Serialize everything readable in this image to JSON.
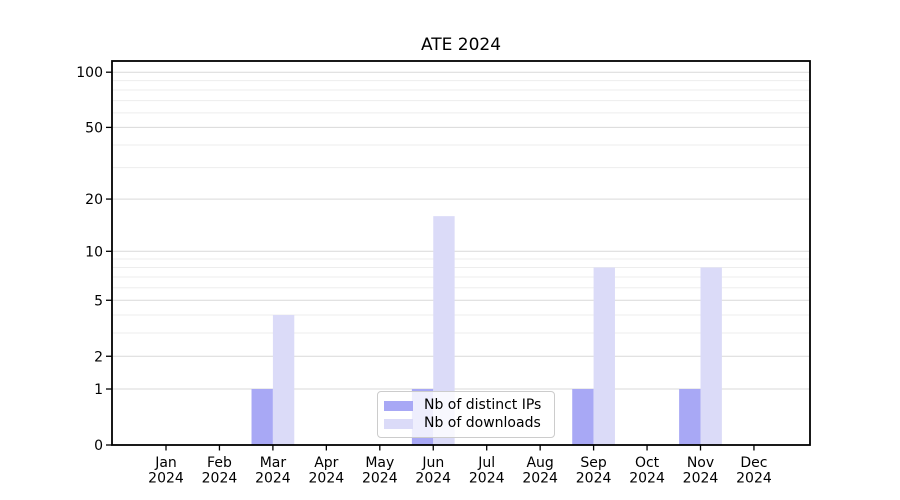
{
  "title": "ATE 2024",
  "chart_data": {
    "type": "bar",
    "title": "ATE 2024",
    "categories": [
      "Jan",
      "Feb",
      "Mar",
      "Apr",
      "May",
      "Jun",
      "Jul",
      "Aug",
      "Sep",
      "Oct",
      "Nov",
      "Dec"
    ],
    "year_label": "2024",
    "series": [
      {
        "name": "Nb of distinct IPs",
        "color": "#a8a8f5",
        "values": [
          0,
          0,
          1,
          0,
          0,
          1,
          0,
          0,
          1,
          0,
          1,
          0
        ]
      },
      {
        "name": "Nb of downloads",
        "color": "#dbdbf8",
        "values": [
          0,
          0,
          4,
          0,
          0,
          16,
          0,
          0,
          8,
          0,
          8,
          0
        ]
      }
    ],
    "xlabel": "",
    "ylabel": "",
    "y_scale": "log(1+x)",
    "ylim": [
      0,
      115
    ],
    "y_major_ticks": [
      0,
      1,
      2,
      5,
      10,
      20,
      50,
      100
    ],
    "y_minor_gridlines": [
      3,
      4,
      6,
      7,
      8,
      9,
      30,
      40,
      60,
      70,
      80,
      90
    ],
    "grid": "horizontal major and minor gridlines on",
    "legend_position": "lower center inside plot",
    "colors": {
      "major_grid": "#d9d9d9",
      "minor_grid": "#ededed",
      "axis": "#000000",
      "text": "#000000"
    }
  }
}
